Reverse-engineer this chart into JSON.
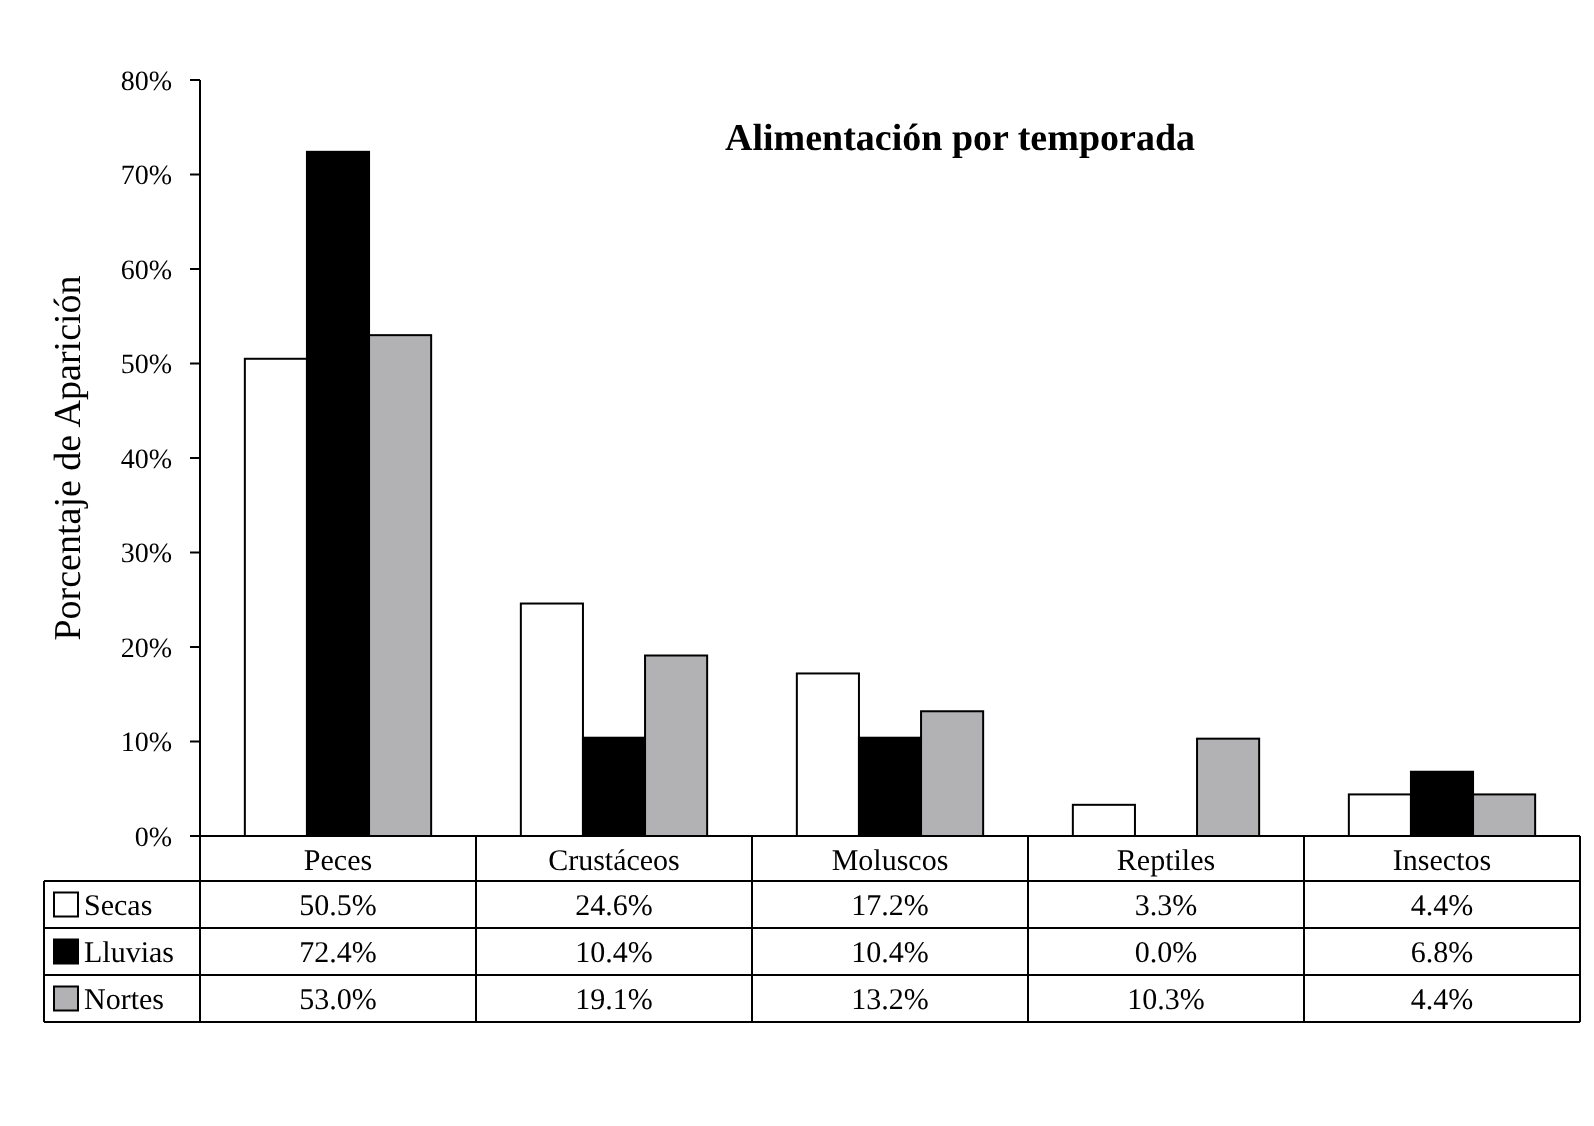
{
  "chart_data": {
    "type": "bar",
    "title": "Alimentación por temporada",
    "ylabel": "Porcentaje de Aparición",
    "categories": [
      "Peces",
      "Crustáceos",
      "Moluscos",
      "Reptiles",
      "Insectos"
    ],
    "series": [
      {
        "name": "Secas",
        "color": "#ffffff",
        "values": [
          50.5,
          24.6,
          17.2,
          3.3,
          4.4
        ],
        "value_labels": [
          "50.5%",
          "24.6%",
          "17.2%",
          "3.3%",
          "4.4%"
        ]
      },
      {
        "name": "Lluvias",
        "color": "#000000",
        "values": [
          72.4,
          10.4,
          10.4,
          0.0,
          6.8
        ],
        "value_labels": [
          "72.4%",
          "10.4%",
          "10.4%",
          "0.0%",
          "6.8%"
        ]
      },
      {
        "name": "Nortes",
        "color": "#b2b2b4",
        "values": [
          53.0,
          19.1,
          13.2,
          10.3,
          4.4
        ],
        "value_labels": [
          "53.0%",
          "19.1%",
          "13.2%",
          "10.3%",
          "4.4%"
        ]
      }
    ],
    "ylim": [
      0,
      80
    ],
    "yticks": [
      {
        "value": 0,
        "label": "0%"
      },
      {
        "value": 10,
        "label": "10%"
      },
      {
        "value": 20,
        "label": "20%"
      },
      {
        "value": 30,
        "label": "30%"
      },
      {
        "value": 40,
        "label": "40%"
      },
      {
        "value": 50,
        "label": "50%"
      },
      {
        "value": 60,
        "label": "60%"
      },
      {
        "value": 70,
        "label": "70%"
      },
      {
        "value": 80,
        "label": "80%"
      }
    ],
    "grid": false,
    "legend": "bottom left"
  }
}
